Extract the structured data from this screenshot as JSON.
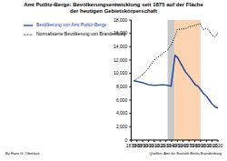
{
  "chart_data": {
    "type": "line",
    "title": "Amt Putlitz-Berge: Bevölkerungsentwicklung seit 1875 auf der Fläche der heutigen Gebietskörperschaft",
    "x": [
      1875,
      1890,
      1900,
      1910,
      1925,
      1933,
      1939,
      1946,
      1950,
      1964,
      1971,
      1981,
      1985,
      1989,
      1990,
      1995,
      2000,
      2005,
      2010,
      2015,
      2020
    ],
    "series": [
      {
        "name": "Bevölkerung von Amt Putlitz-Berge",
        "color": "#1c3f9e",
        "line_style": "solid",
        "values": [
          8900,
          8600,
          8300,
          8200,
          8300,
          8200,
          8100,
          12700,
          12400,
          10200,
          9500,
          8300,
          8100,
          7700,
          7600,
          7000,
          6600,
          6000,
          5400,
          5000,
          4800
        ]
      },
      {
        "name": "Normalisierte Bevölkerung von Brandenburg",
        "color": "#000000",
        "line_style": "dotted",
        "values": [
          8900,
          9800,
          10800,
          12000,
          13000,
          13500,
          14200,
          15600,
          16600,
          16700,
          17000,
          17200,
          17300,
          17500,
          17300,
          16500,
          16800,
          16400,
          15700,
          15500,
          16100
        ]
      }
    ],
    "xlim": [
      1870,
      2020
    ],
    "xticks": [
      1870,
      1880,
      1890,
      1900,
      1910,
      1920,
      1930,
      1940,
      1950,
      1960,
      1970,
      1980,
      1990,
      2000,
      2010,
      2020
    ],
    "ylim": [
      0,
      18000
    ],
    "yticks": [
      0,
      {
        "value": 2000,
        "label": "2,000"
      },
      {
        "value": 4000,
        "label": "4,000"
      },
      {
        "value": 6000,
        "label": "6,000"
      },
      {
        "value": 8000,
        "label": "8,000"
      },
      {
        "value": 10000,
        "label": "10,000"
      },
      {
        "value": 12000,
        "label": "12,000"
      },
      {
        "value": 14000,
        "label": "14,000"
      },
      {
        "value": 16000,
        "label": "16,000"
      },
      {
        "value": 18000,
        "label": "18,000"
      }
    ],
    "shaded_ranges": [
      {
        "x1": 1933,
        "x2": 1945,
        "color": "#c8c8c8"
      },
      {
        "x1": 1945,
        "x2": 1990,
        "color": "#fbd3b0"
      }
    ],
    "grid": false,
    "legend": "upper left",
    "annotations": [
      "By Hans G. Oberlack",
      "Quellen: Amt für Statistik Berlin-Brandenburg"
    ]
  }
}
